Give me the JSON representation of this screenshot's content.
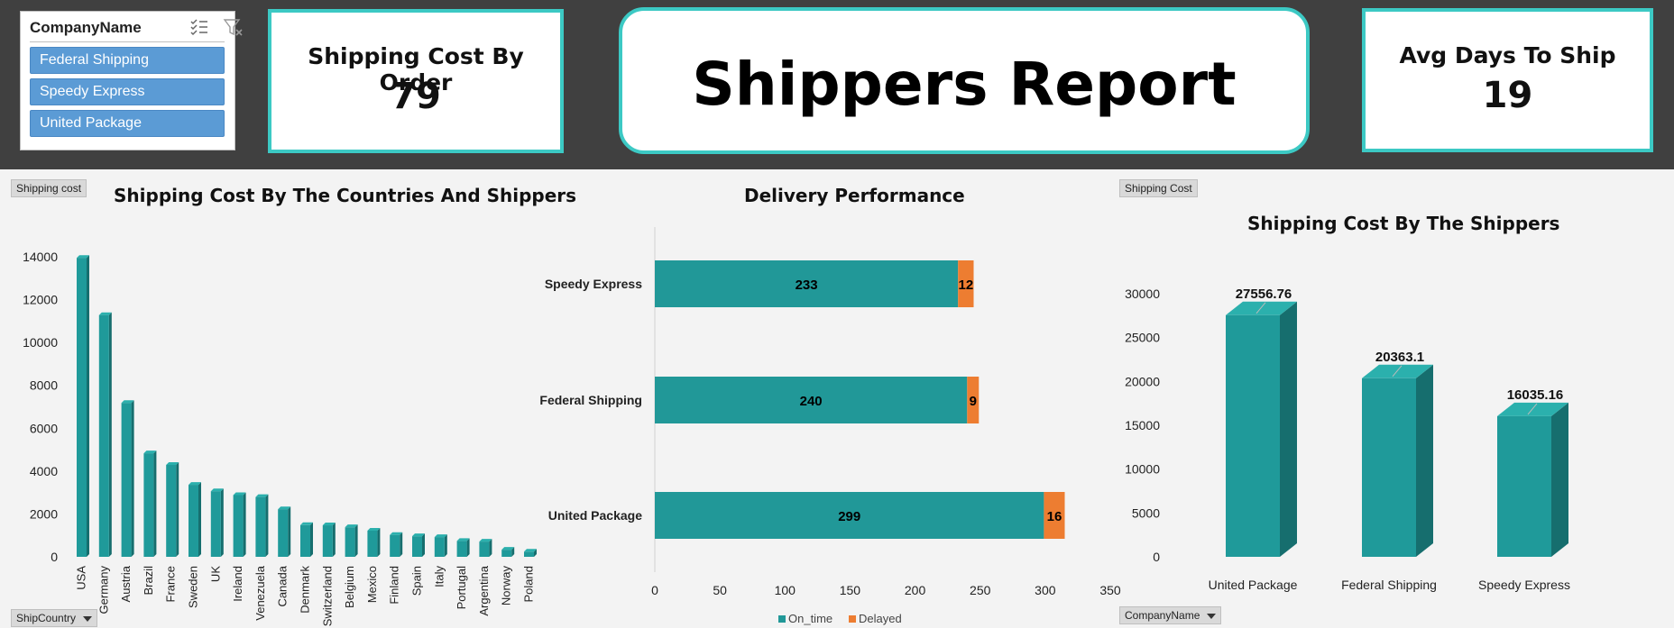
{
  "slicer": {
    "title": "CompanyName",
    "items": [
      "Federal Shipping",
      "Speedy Express",
      "United Package"
    ],
    "item_color": "#5b9bd5"
  },
  "kpis": {
    "cost_title": "Shipping Cost By Order",
    "cost_value": "79",
    "days_title": "Avg Days To Ship",
    "days_value": "19"
  },
  "report_title": "Shippers Report",
  "colors": {
    "accent_border": "#3cc9c4",
    "bar": "#1f9a9a",
    "bar_side": "#166e6e",
    "bar_top": "#2bb0ad",
    "on_time": "#219898",
    "delayed": "#ed7d31",
    "header_bg": "#404040"
  },
  "buttons": {
    "shipping_cost_left": "Shipping  cost",
    "ship_country": "ShipCountry",
    "shipping_cost_right": "Shipping  Cost",
    "company_name": "CompanyName"
  },
  "chart_data": [
    {
      "type": "bar",
      "title": "Shipping Cost By The Countries And Shippers",
      "categories": [
        "USA",
        "Germany",
        "Austria",
        "Brazil",
        "France",
        "Sweden",
        "UK",
        "Ireland",
        "Venezuela",
        "Canada",
        "Denmark",
        "Switzerland",
        "Belgium",
        "Mexico",
        "Finland",
        "Spain",
        "Italy",
        "Portugal",
        "Argentina",
        "Norway",
        "Poland"
      ],
      "values": [
        13950,
        11280,
        7180,
        4830,
        4290,
        3360,
        3060,
        2880,
        2790,
        2220,
        1480,
        1470,
        1380,
        1220,
        1020,
        960,
        920,
        740,
        710,
        330,
        240
      ],
      "yticks": [
        "0",
        "2000",
        "4000",
        "6000",
        "8000",
        "10000",
        "12000",
        "14000"
      ],
      "ylim": [
        0,
        14000
      ],
      "grid": false
    },
    {
      "type": "bar",
      "orientation": "horizontal",
      "stacked": true,
      "title": "Delivery Performance",
      "categories": [
        "Speedy Express",
        "Federal Shipping",
        "United Package"
      ],
      "series": [
        {
          "name": "On_time",
          "values": [
            233,
            240,
            299
          ]
        },
        {
          "name": "Delayed",
          "values": [
            12,
            9,
            16
          ]
        }
      ],
      "xticks": [
        "0",
        "50",
        "100",
        "150",
        "200",
        "250",
        "300",
        "350"
      ],
      "xlim": [
        0,
        350
      ],
      "legend": "bottom"
    },
    {
      "type": "bar",
      "title": "Shipping Cost By The Shippers",
      "categories": [
        "United Package",
        "Federal Shipping",
        "Speedy Express"
      ],
      "values": [
        27556.76,
        20363.1,
        16035.16
      ],
      "value_labels": [
        "27556.76",
        "20363.1",
        "16035.16"
      ],
      "yticks": [
        "0",
        "5000",
        "10000",
        "15000",
        "20000",
        "25000",
        "30000"
      ],
      "ylim": [
        0,
        30000
      ],
      "grid": false
    }
  ]
}
